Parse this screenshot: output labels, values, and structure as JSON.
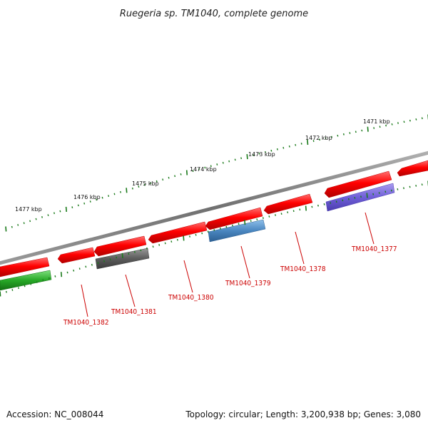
{
  "title": "Ruegeria sp. TM1040, complete genome",
  "scale_ticks": [
    "1471 kbp",
    "1472 kbp",
    "1473 kbp",
    "1474 kbp",
    "1475 kbp",
    "1476 kbp",
    "1477 kbp"
  ],
  "genes": [
    {
      "label": "TM1040_1377",
      "color": "#7a6ad8"
    },
    {
      "label": "TM1040_1378",
      "color": "#ff0000"
    },
    {
      "label": "TM1040_1379",
      "color": "#4a86c0"
    },
    {
      "label": "TM1040_1380",
      "color": "#ff0000"
    },
    {
      "label": "TM1040_1381",
      "color": "#606060"
    },
    {
      "label": "TM1040_1382",
      "color": "#ff0000"
    }
  ],
  "colors": {
    "forward_cds": "#ff0000",
    "reverse_cds": "#ff0000",
    "backbone": "#808080",
    "tick": "#1a7a1a",
    "label": "#cc0000",
    "green_feature": "#2eb82e"
  },
  "footer": {
    "accession": "Accession: NC_008044",
    "summary": "Topology: circular; Length: 3,200,938 bp; Genes: 3,080"
  }
}
